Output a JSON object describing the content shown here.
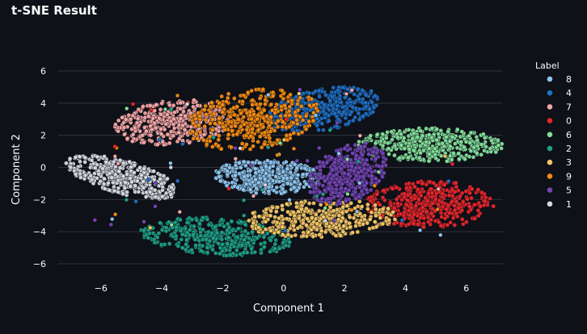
{
  "page": {
    "title": "t-SNE Result"
  },
  "chart_data": {
    "type": "scatter",
    "xlabel": "Component 1",
    "ylabel": "Component 2",
    "xlim": [
      -7.4,
      7.2
    ],
    "ylim": [
      -6.5,
      6.3
    ],
    "x_ticks": [
      -6,
      -4,
      -2,
      0,
      2,
      4,
      6
    ],
    "y_ticks": [
      -6,
      -4,
      -2,
      0,
      2,
      4,
      6
    ],
    "x_tick_labels": [
      "−6",
      "−4",
      "−2",
      "0",
      "2",
      "4",
      "6"
    ],
    "y_tick_labels": [
      "−6",
      "−4",
      "−2",
      "0",
      "2",
      "4",
      "6"
    ],
    "grid": {
      "horizontal": true,
      "vertical": false
    },
    "legend": {
      "title": "Label",
      "placement": "right",
      "entries": [
        "8",
        "4",
        "7",
        "0",
        "6",
        "2",
        "3",
        "9",
        "5",
        "1"
      ]
    },
    "series": [
      {
        "name": "8",
        "color": "#8ec5ee",
        "cluster": {
          "cx": -0.5,
          "cy": -0.6,
          "sx": 1.7,
          "sy": 1.0,
          "rot": -5
        }
      },
      {
        "name": "4",
        "color": "#1f6fc4",
        "cluster": {
          "cx": 1.3,
          "cy": 3.6,
          "sx": 1.9,
          "sy": 1.2,
          "rot": 28
        }
      },
      {
        "name": "7",
        "color": "#f4a6a6",
        "cluster": {
          "cx": -3.6,
          "cy": 2.8,
          "sx": 1.9,
          "sy": 1.3,
          "rot": 15
        }
      },
      {
        "name": "0",
        "color": "#e8262b",
        "cluster": {
          "cx": 4.8,
          "cy": -2.3,
          "sx": 2.0,
          "sy": 1.4,
          "rot": 0
        }
      },
      {
        "name": "6",
        "color": "#84de9a",
        "cluster": {
          "cx": 4.8,
          "cy": 1.4,
          "sx": 2.3,
          "sy": 1.0,
          "rot": 0
        }
      },
      {
        "name": "2",
        "color": "#1f9e86",
        "cluster": {
          "cx": -2.2,
          "cy": -4.3,
          "sx": 2.4,
          "sy": 1.1,
          "rot": -8
        }
      },
      {
        "name": "3",
        "color": "#f3c564",
        "cluster": {
          "cx": 1.2,
          "cy": -3.2,
          "sx": 2.4,
          "sy": 1.1,
          "rot": 5
        }
      },
      {
        "name": "9",
        "color": "#f28a11",
        "cluster": {
          "cx": -1.0,
          "cy": 3.0,
          "sx": 2.2,
          "sy": 1.7,
          "rot": 35
        }
      },
      {
        "name": "5",
        "color": "#7444b6",
        "cluster": {
          "cx": 2.1,
          "cy": -0.4,
          "sx": 1.1,
          "sy": 1.9,
          "rot": -20
        }
      },
      {
        "name": "1",
        "color": "#d7d9e0",
        "cluster": {
          "cx": -5.3,
          "cy": -0.6,
          "sx": 2.0,
          "sy": 0.9,
          "rot": -32
        }
      }
    ]
  }
}
